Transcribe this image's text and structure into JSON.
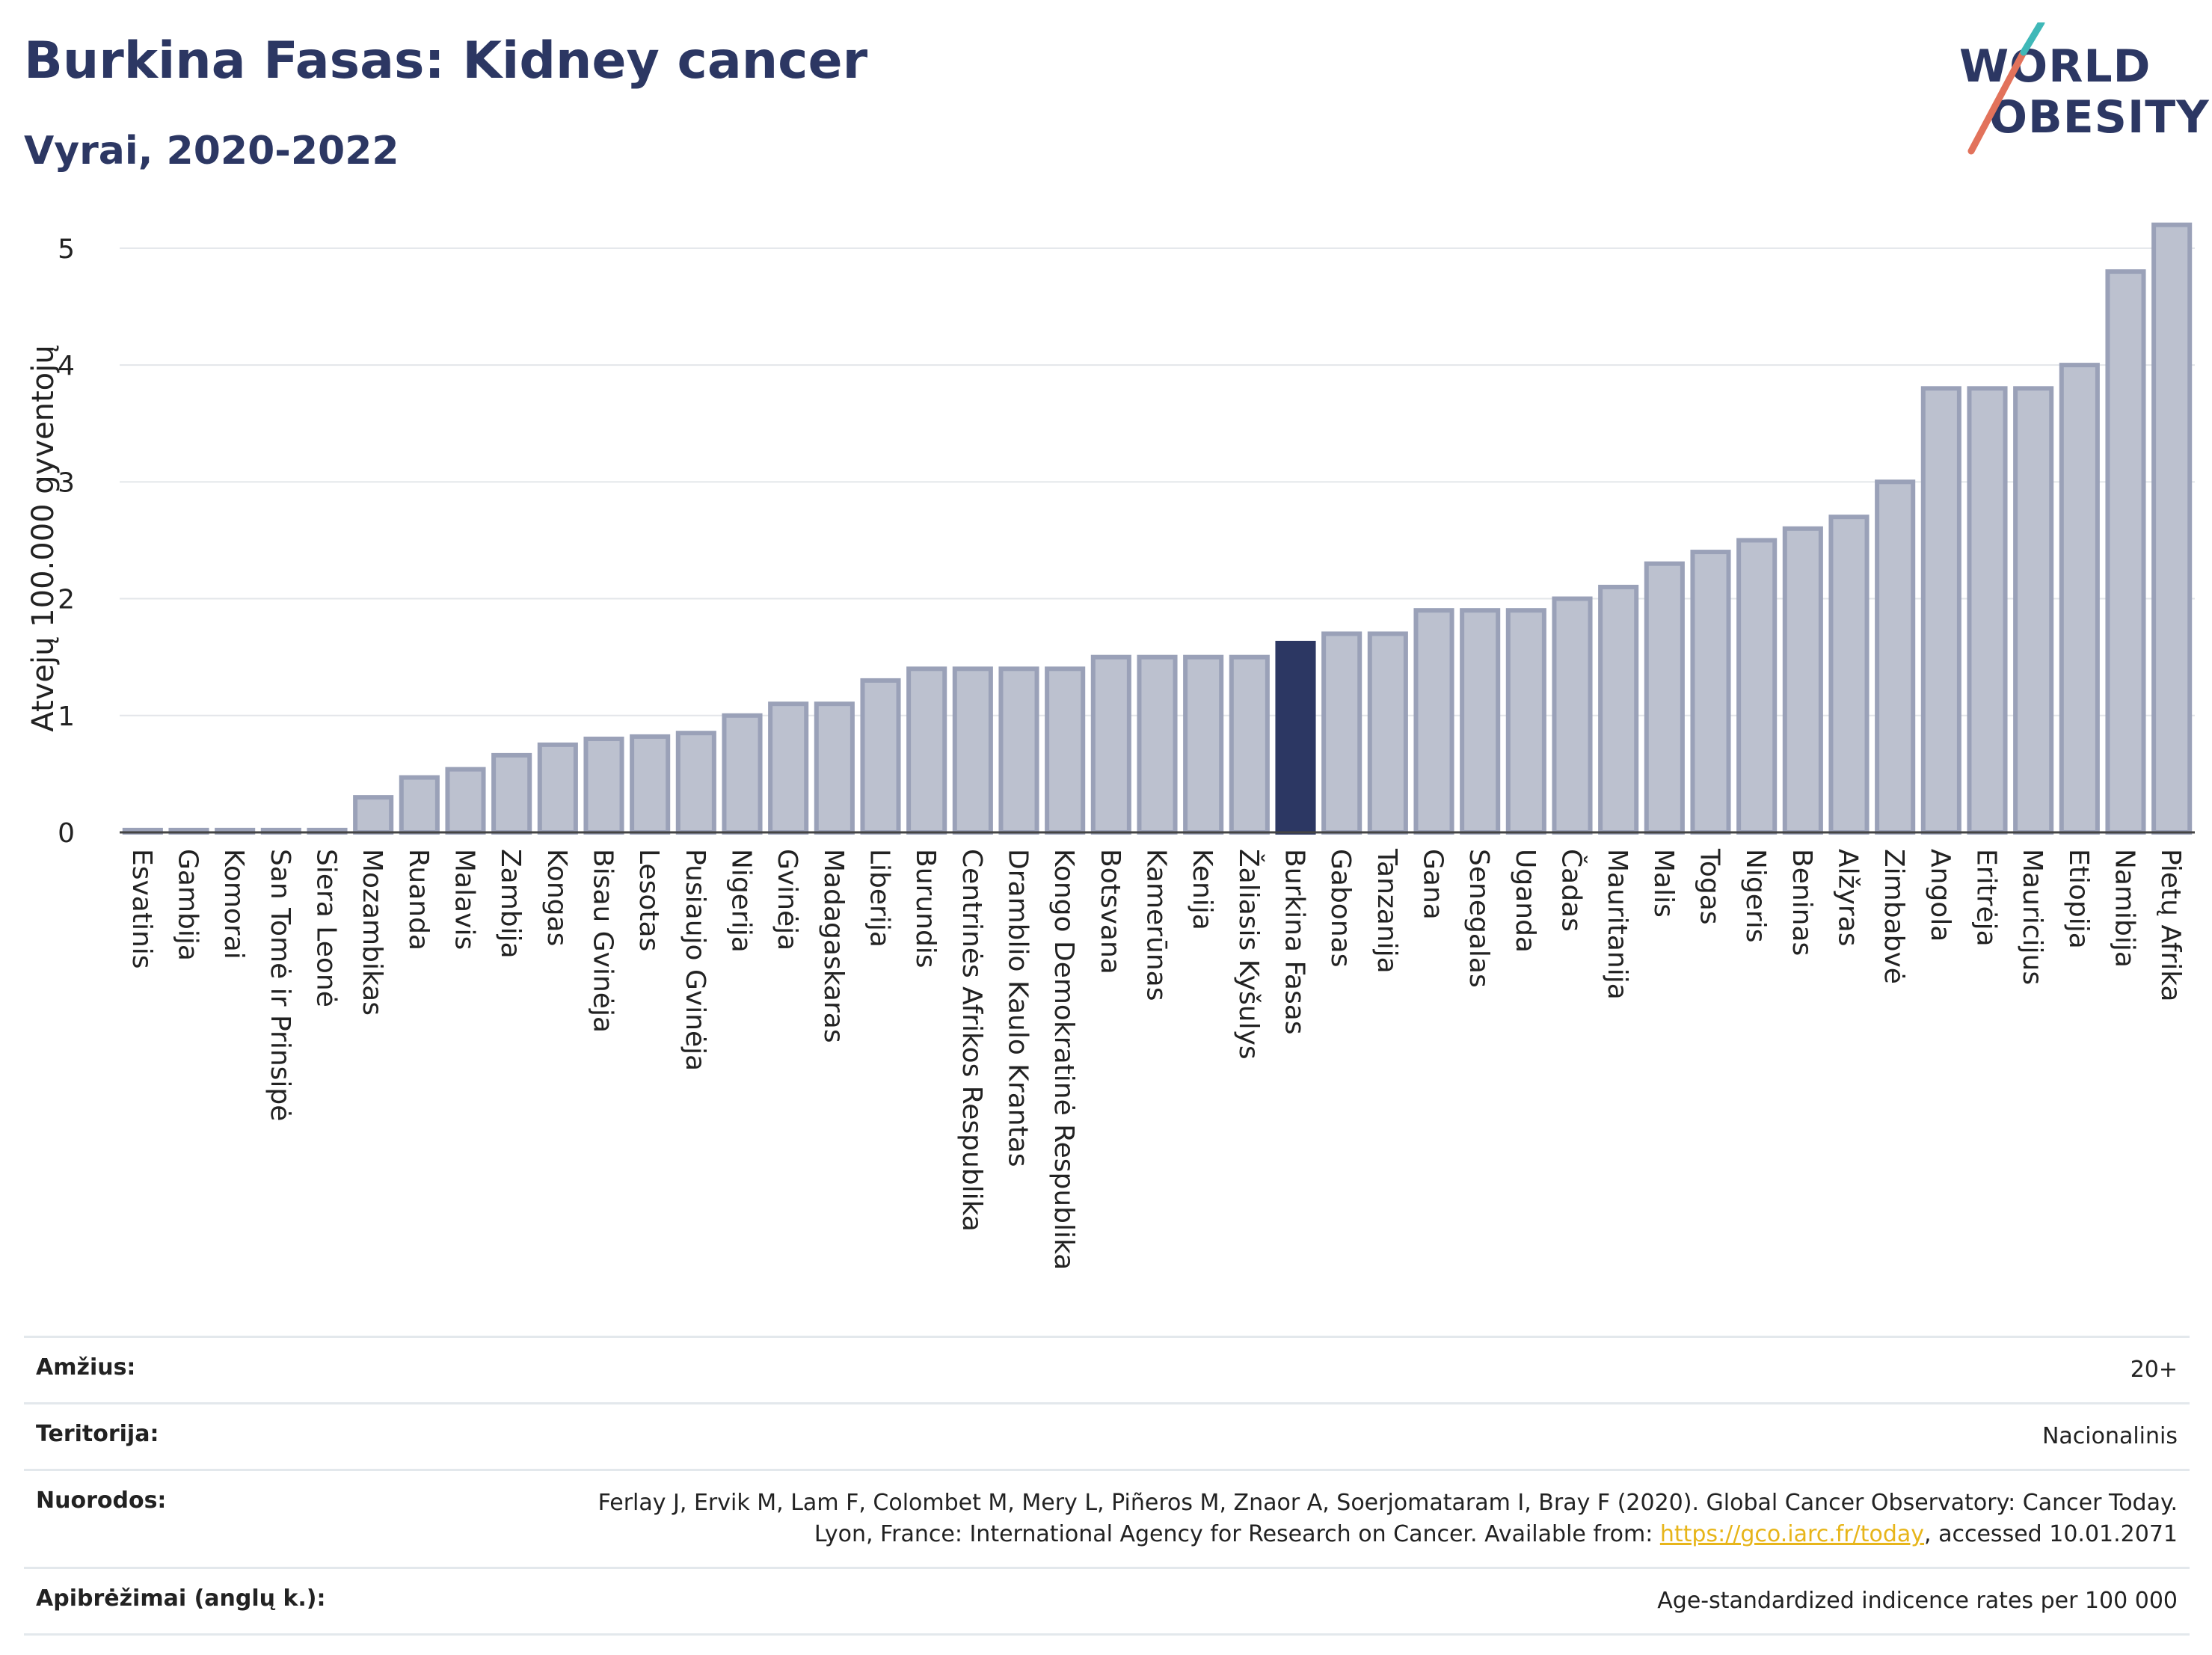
{
  "header": {
    "title": "Burkina Fasas: Kidney cancer",
    "subtitle": "Vyrai, 2020-2022"
  },
  "logo": {
    "line1": "WORLD",
    "line2": "OBESITY"
  },
  "colors": {
    "highlight": "#2c3763",
    "bar_fill": "#bcc1cf",
    "bar_stroke": "#9aa1b8",
    "grid": "#e3e6ea"
  },
  "chart_data": {
    "type": "bar",
    "ylabel": "Atvejų 100.000 gyventojų",
    "ylim": [
      0,
      5.3
    ],
    "yticks": [
      0,
      1,
      2,
      3,
      4,
      5
    ],
    "grid": true,
    "highlight": "Burkina Fasas",
    "categories": [
      "Esvatinis",
      "Gambija",
      "Komorai",
      "San Tomė ir Prinsipė",
      "Siera Leonė",
      "Mozambikas",
      "Ruanda",
      "Malavis",
      "Zambija",
      "Kongas",
      "Bisau Gvinėja",
      "Lesotas",
      "Pusiaujo Gvinėja",
      "Nigerija",
      "Gvinėja",
      "Madagaskaras",
      "Liberija",
      "Burundis",
      "Centrinės Afrikos Respublika",
      "Dramblio Kaulo Krantas",
      "Kongo Demokratinė Respublika",
      "Botsvana",
      "Kamerūnas",
      "Kenija",
      "Žaliasis Kyšulys",
      "Burkina Fasas",
      "Gabonas",
      "Tanzanija",
      "Gana",
      "Senegalas",
      "Uganda",
      "Čadas",
      "Mauritanija",
      "Malis",
      "Togas",
      "Nigeris",
      "Beninas",
      "Alžyras",
      "Zimbabvė",
      "Angola",
      "Eritrėja",
      "Mauricijus",
      "Etiopija",
      "Namibija",
      "Pietų Afrika"
    ],
    "values": [
      0.02,
      0.02,
      0.02,
      0.02,
      0.02,
      0.3,
      0.47,
      0.54,
      0.66,
      0.75,
      0.8,
      0.82,
      0.85,
      1.0,
      1.1,
      1.1,
      1.3,
      1.4,
      1.4,
      1.4,
      1.4,
      1.5,
      1.5,
      1.5,
      1.5,
      1.62,
      1.7,
      1.7,
      1.9,
      1.9,
      1.9,
      2.0,
      2.1,
      2.3,
      2.4,
      2.5,
      2.6,
      2.7,
      3.0,
      3.8,
      3.8,
      3.8,
      4.0,
      4.8,
      5.2
    ]
  },
  "meta": {
    "age_label": "Amžius:",
    "age_value": "20+",
    "territory_label": "Teritorija:",
    "territory_value": "Nacionalinis",
    "refs_label": "Nuorodos:",
    "refs_text_1": "Ferlay J, Ervik M, Lam F, Colombet M, Mery L, Piñeros M, Znaor A, Soerjomataram I, Bray F (2020). Global Cancer Observatory: Cancer Today. Lyon, France: International Agency for Research on Cancer. Available from: ",
    "refs_link": "https://gco.iarc.fr/today",
    "refs_text_2": ", accessed 10.01.2071",
    "defs_label": "Apibrėžimai (anglų k.):",
    "defs_value": "Age-standardized indicence rates per 100 000"
  }
}
